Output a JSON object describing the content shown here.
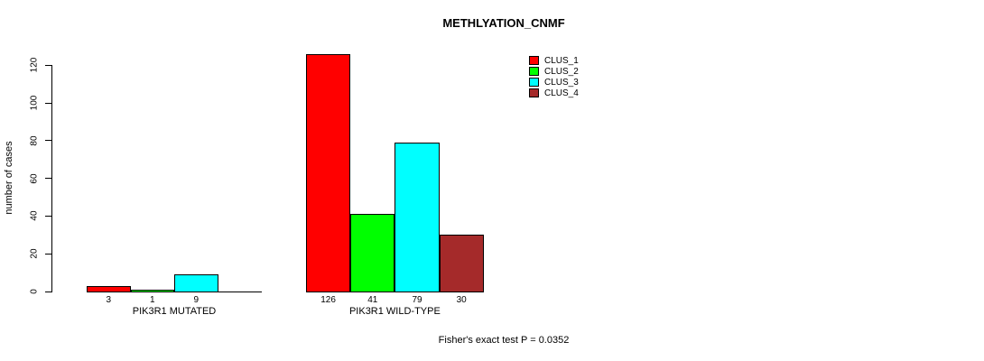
{
  "chart_data": {
    "type": "bar",
    "title": "METHLYATION_CNMF",
    "ylabel": "number of cases",
    "categories": [
      "PIK3R1 MUTATED",
      "PIK3R1 WILD-TYPE"
    ],
    "series": [
      {
        "name": "CLUS_1",
        "color": "#ff0000",
        "values": [
          3,
          126
        ]
      },
      {
        "name": "CLUS_2",
        "color": "#00ff00",
        "values": [
          1,
          41
        ]
      },
      {
        "name": "CLUS_3",
        "color": "#00ffff",
        "values": [
          9,
          79
        ]
      },
      {
        "name": "CLUS_4",
        "color": "#a52a2a",
        "values": [
          0,
          30
        ]
      }
    ],
    "yticks": [
      0,
      20,
      40,
      60,
      80,
      100,
      120
    ],
    "ylim": [
      0,
      126
    ],
    "grid": false,
    "legend_position": "top-right",
    "annotation": "Fisher's exact test P = 0.0352"
  }
}
